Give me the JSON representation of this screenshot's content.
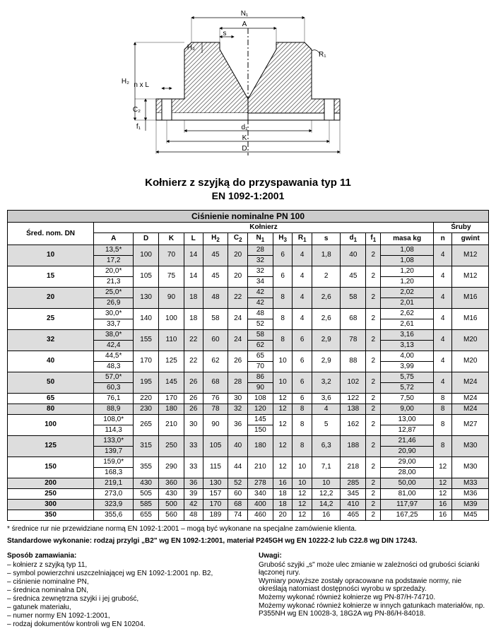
{
  "diagram": {
    "labels": [
      "N₁",
      "A",
      "s",
      "H₃",
      "R₁",
      "n x L",
      "H₂",
      "C₂",
      "f₁",
      "d₁",
      "K",
      "D"
    ],
    "stroke": "#000",
    "hatch": "#666"
  },
  "title": "Kołnierz z szyjką do przyspawania typ 11",
  "subtitle": "EN 1092-1:2001",
  "tableHeader": "Ciśnienie nominalne PN 100",
  "colGroup1": "Śred. nom. DN",
  "colGroup2": "Kołnierz",
  "colGroup3": "Śruby",
  "cols": [
    "A",
    "D",
    "K",
    "L",
    "H₂",
    "C₂",
    "N₁",
    "H₃",
    "R₁",
    "s",
    "d₁",
    "f₁",
    "masa kg",
    "n",
    "gwint"
  ],
  "rows": [
    {
      "dn": "10",
      "a": [
        "13,5*",
        "17,2"
      ],
      "d": "100",
      "k": "70",
      "l": "14",
      "h2": "45",
      "c2": "20",
      "n1": [
        "28",
        "32"
      ],
      "h3": "6",
      "r1": "4",
      "s": "1,8",
      "d1": "40",
      "f1": "2",
      "m": [
        "1,08",
        "1,08"
      ],
      "n": "4",
      "g": "M12",
      "gray": true
    },
    {
      "dn": "15",
      "a": [
        "20,0*",
        "21,3"
      ],
      "d": "105",
      "k": "75",
      "l": "14",
      "h2": "45",
      "c2": "20",
      "n1": [
        "32",
        "34"
      ],
      "h3": "6",
      "r1": "4",
      "s": "2",
      "d1": "45",
      "f1": "2",
      "m": [
        "1,20",
        "1,20"
      ],
      "n": "4",
      "g": "M12",
      "gray": false
    },
    {
      "dn": "20",
      "a": [
        "25,0*",
        "26,9"
      ],
      "d": "130",
      "k": "90",
      "l": "18",
      "h2": "48",
      "c2": "22",
      "n1": [
        "42",
        "42"
      ],
      "h3": "8",
      "r1": "4",
      "s": "2,6",
      "d1": "58",
      "f1": "2",
      "m": [
        "2,02",
        "2,01"
      ],
      "n": "4",
      "g": "M16",
      "gray": true
    },
    {
      "dn": "25",
      "a": [
        "30,0*",
        "33,7"
      ],
      "d": "140",
      "k": "100",
      "l": "18",
      "h2": "58",
      "c2": "24",
      "n1": [
        "48",
        "52"
      ],
      "h3": "8",
      "r1": "4",
      "s": "2,6",
      "d1": "68",
      "f1": "2",
      "m": [
        "2,62",
        "2,61"
      ],
      "n": "4",
      "g": "M16",
      "gray": false
    },
    {
      "dn": "32",
      "a": [
        "38,0*",
        "42,4"
      ],
      "d": "155",
      "k": "110",
      "l": "22",
      "h2": "60",
      "c2": "24",
      "n1": [
        "58",
        "62"
      ],
      "h3": "8",
      "r1": "6",
      "s": "2,9",
      "d1": "78",
      "f1": "2",
      "m": [
        "3,16",
        "3,13"
      ],
      "n": "4",
      "g": "M20",
      "gray": true
    },
    {
      "dn": "40",
      "a": [
        "44,5*",
        "48,3"
      ],
      "d": "170",
      "k": "125",
      "l": "22",
      "h2": "62",
      "c2": "26",
      "n1": [
        "65",
        "70"
      ],
      "h3": "10",
      "r1": "6",
      "s": "2,9",
      "d1": "88",
      "f1": "2",
      "m": [
        "4,00",
        "3,99"
      ],
      "n": "4",
      "g": "M20",
      "gray": false
    },
    {
      "dn": "50",
      "a": [
        "57,0*",
        "60,3"
      ],
      "d": "195",
      "k": "145",
      "l": "26",
      "h2": "68",
      "c2": "28",
      "n1": [
        "86",
        "90"
      ],
      "h3": "10",
      "r1": "6",
      "s": "3,2",
      "d1": "102",
      "f1": "2",
      "m": [
        "5,75",
        "5,72"
      ],
      "n": "4",
      "g": "M24",
      "gray": true
    },
    {
      "dn": "65",
      "a": [
        "76,1"
      ],
      "d": "220",
      "k": "170",
      "l": "26",
      "h2": "76",
      "c2": "30",
      "n1": [
        "108"
      ],
      "h3": "12",
      "r1": "6",
      "s": "3,6",
      "d1": "122",
      "f1": "2",
      "m": [
        "7,50"
      ],
      "n": "8",
      "g": "M24",
      "gray": false
    },
    {
      "dn": "80",
      "a": [
        "88,9"
      ],
      "d": "230",
      "k": "180",
      "l": "26",
      "h2": "78",
      "c2": "32",
      "n1": [
        "120"
      ],
      "h3": "12",
      "r1": "8",
      "s": "4",
      "d1": "138",
      "f1": "2",
      "m": [
        "9,00"
      ],
      "n": "8",
      "g": "M24",
      "gray": true
    },
    {
      "dn": "100",
      "a": [
        "108,0*",
        "114,3"
      ],
      "d": "265",
      "k": "210",
      "l": "30",
      "h2": "90",
      "c2": "36",
      "n1": [
        "145",
        "150"
      ],
      "h3": "12",
      "r1": "8",
      "s": "5",
      "d1": "162",
      "f1": "2",
      "m": [
        "13,00",
        "12,87"
      ],
      "n": "8",
      "g": "M27",
      "gray": false
    },
    {
      "dn": "125",
      "a": [
        "133,0*",
        "139,7"
      ],
      "d": "315",
      "k": "250",
      "l": "33",
      "h2": "105",
      "c2": "40",
      "n1": [
        "180"
      ],
      "h3": "12",
      "r1": "8",
      "s": "6,3",
      "d1": "188",
      "f1": "2",
      "m": [
        "21,46",
        "20,90"
      ],
      "n": "8",
      "g": "M30",
      "gray": true
    },
    {
      "dn": "150",
      "a": [
        "159,0*",
        "168,3"
      ],
      "d": "355",
      "k": "290",
      "l": "33",
      "h2": "115",
      "c2": "44",
      "n1": [
        "210"
      ],
      "h3": "12",
      "r1": "10",
      "s": "7,1",
      "d1": "218",
      "f1": "2",
      "m": [
        "29,00",
        "28,00"
      ],
      "n": "12",
      "g": "M30",
      "gray": false
    },
    {
      "dn": "200",
      "a": [
        "219,1"
      ],
      "d": "430",
      "k": "360",
      "l": "36",
      "h2": "130",
      "c2": "52",
      "n1": [
        "278"
      ],
      "h3": "16",
      "r1": "10",
      "s": "10",
      "d1": "285",
      "f1": "2",
      "m": [
        "50,00"
      ],
      "n": "12",
      "g": "M33",
      "gray": true
    },
    {
      "dn": "250",
      "a": [
        "273,0"
      ],
      "d": "505",
      "k": "430",
      "l": "39",
      "h2": "157",
      "c2": "60",
      "n1": [
        "340"
      ],
      "h3": "18",
      "r1": "12",
      "s": "12,2",
      "d1": "345",
      "f1": "2",
      "m": [
        "81,00"
      ],
      "n": "12",
      "g": "M36",
      "gray": false
    },
    {
      "dn": "300",
      "a": [
        "323,9"
      ],
      "d": "585",
      "k": "500",
      "l": "42",
      "h2": "170",
      "c2": "68",
      "n1": [
        "400"
      ],
      "h3": "18",
      "r1": "12",
      "s": "14,2",
      "d1": "410",
      "f1": "2",
      "m": [
        "117,97"
      ],
      "n": "16",
      "g": "M39",
      "gray": true
    },
    {
      "dn": "350",
      "a": [
        "355,6"
      ],
      "d": "655",
      "k": "560",
      "l": "48",
      "h2": "189",
      "c2": "74",
      "n1": [
        "460"
      ],
      "h3": "20",
      "r1": "12",
      "s": "16",
      "d1": "465",
      "f1": "2",
      "m": [
        "167,25"
      ],
      "n": "16",
      "g": "M45",
      "gray": false
    }
  ],
  "footnote": "* średnice rur nie przewidziane normą EN 1092-1:2001 – mogą być wykonane na specjalne zamówienie klienta.",
  "std": "Standardowe wykonanie: rodzaj przylgi „B2\" wg EN 1092-1:2001, materiał P245GH wg EN 10222-2 lub C22.8 wg DIN 17243.",
  "orderTitle": "Sposób zamawiania:",
  "order": [
    "– kołnierz z szyjką typ 11,",
    "– symbol powierzchni uszczelniającej wg EN 1092-1:2001 np. B2,",
    "– ciśnienie nominalne PN,",
    "– średnica nominalna DN,",
    "– średnica zewnętrzna szyjki i jej grubość,",
    "– gatunek materiału,",
    "– numer normy EN 1092-1:2001,",
    "– rodzaj dokumentów kontroli wg EN 10204."
  ],
  "notesTitle": "Uwagi:",
  "notes": [
    "Grubość szyjki „s\" może ulec zmianie w zależności od grubości ścianki łączonej rury.",
    "Wymiary powyższe zostały opracowane na podstawie normy, nie określają natomiast dostępności wyrobu w sprzedaży.",
    "Możemy wykonać również kołnierze wg  PN-87/H-74710.",
    "Możemy wykonać również kołnierze w innych gatunkach materiałów, np. P355NH wg EN 10028-3, 18G2A wg PN-86/H-84018."
  ]
}
